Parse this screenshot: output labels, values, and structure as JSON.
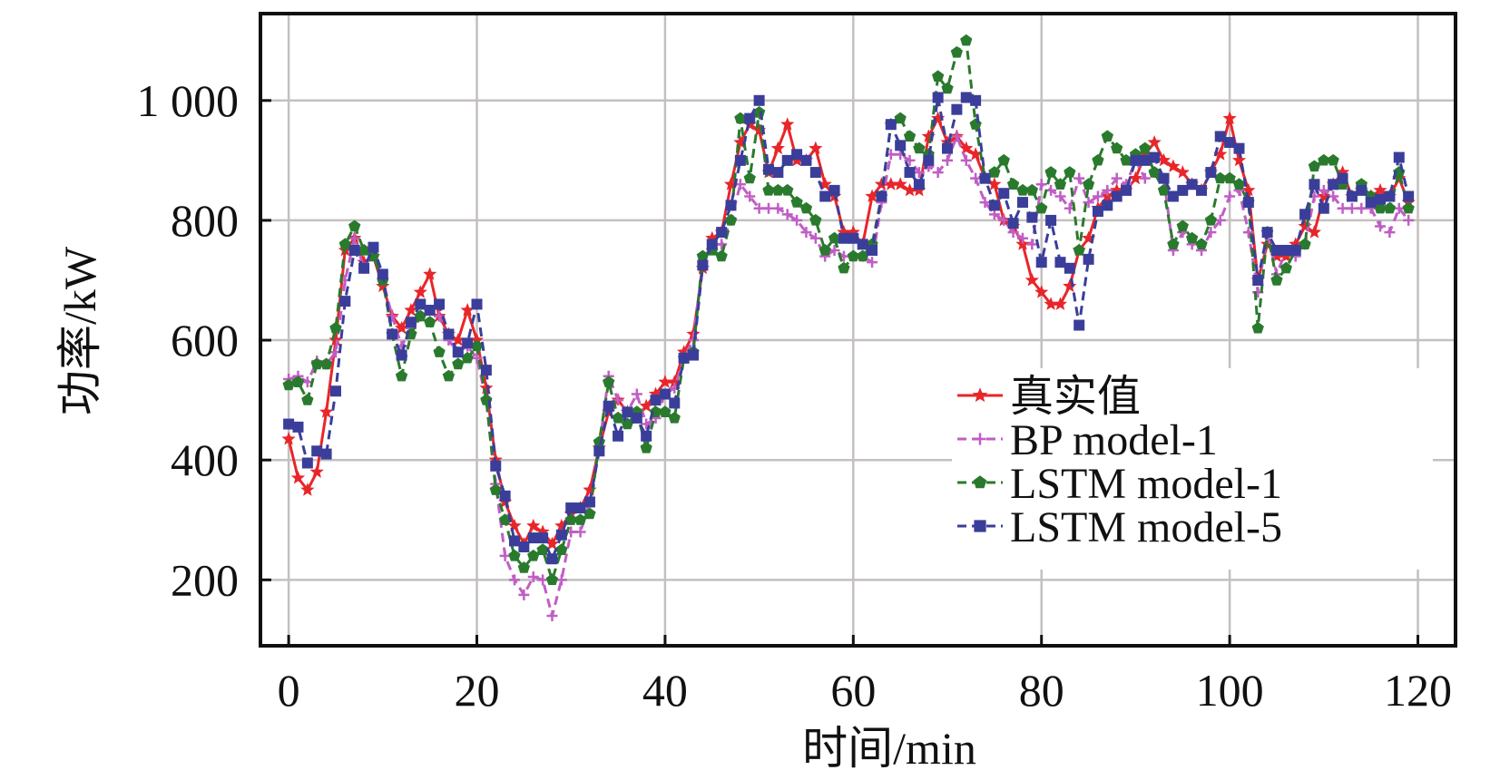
{
  "chart_data": {
    "type": "line",
    "xlabel": "时间/min",
    "ylabel": "功率/kW",
    "xlim": [
      -3,
      124
    ],
    "ylim": [
      90,
      1145
    ],
    "xticks": [
      0,
      20,
      40,
      60,
      80,
      100,
      120
    ],
    "xtick_labels": [
      "0",
      "20",
      "40",
      "60",
      "80",
      "100",
      "120"
    ],
    "yticks": [
      200,
      400,
      600,
      800,
      1000
    ],
    "ytick_labels": [
      "200",
      "400",
      "600",
      "800",
      "1 000"
    ],
    "grid": true,
    "legend_position": "lower-right",
    "x": [
      0,
      1,
      2,
      3,
      4,
      5,
      6,
      7,
      8,
      9,
      10,
      11,
      12,
      13,
      14,
      15,
      16,
      17,
      18,
      19,
      20,
      21,
      22,
      23,
      24,
      25,
      26,
      27,
      28,
      29,
      30,
      31,
      32,
      33,
      34,
      35,
      36,
      37,
      38,
      39,
      40,
      41,
      42,
      43,
      44,
      45,
      46,
      47,
      48,
      49,
      50,
      51,
      52,
      53,
      54,
      55,
      56,
      57,
      58,
      59,
      60,
      61,
      62,
      63,
      64,
      65,
      66,
      67,
      68,
      69,
      70,
      71,
      72,
      73,
      74,
      75,
      76,
      77,
      78,
      79,
      80,
      81,
      82,
      83,
      84,
      85,
      86,
      87,
      88,
      89,
      90,
      91,
      92,
      93,
      94,
      95,
      96,
      97,
      98,
      99,
      100,
      101,
      102,
      103,
      104,
      105,
      106,
      107,
      108,
      109,
      110,
      111,
      112,
      113,
      114,
      115,
      116,
      117,
      118,
      119
    ],
    "series": [
      {
        "name": "真实值",
        "color": "#e8262a",
        "marker": "star",
        "dash": "solid",
        "values": [
          435,
          370,
          350,
          380,
          480,
          600,
          750,
          770,
          730,
          740,
          690,
          640,
          620,
          650,
          680,
          710,
          640,
          610,
          600,
          650,
          600,
          520,
          400,
          330,
          290,
          260,
          290,
          280,
          260,
          290,
          310,
          320,
          350,
          420,
          480,
          500,
          480,
          470,
          490,
          510,
          530,
          530,
          580,
          610,
          720,
          770,
          780,
          860,
          930,
          960,
          950,
          880,
          920,
          960,
          900,
          900,
          920,
          860,
          840,
          780,
          780,
          760,
          840,
          860,
          860,
          860,
          850,
          850,
          940,
          970,
          930,
          940,
          920,
          910,
          870,
          860,
          800,
          790,
          760,
          700,
          680,
          660,
          660,
          690,
          750,
          770,
          820,
          840,
          850,
          850,
          870,
          910,
          930,
          900,
          890,
          880,
          860,
          850,
          880,
          910,
          970,
          900,
          850,
          700,
          760,
          740,
          740,
          760,
          790,
          780,
          840,
          860,
          880,
          840,
          850,
          840,
          850,
          840,
          870,
          830
        ]
      },
      {
        "name": "BP model-1",
        "color": "#c05ec5",
        "marker": "plus",
        "dash": "dashed",
        "values": [
          535,
          540,
          530,
          565,
          560,
          580,
          700,
          770,
          720,
          750,
          700,
          640,
          590,
          620,
          640,
          650,
          640,
          600,
          580,
          590,
          570,
          500,
          360,
          240,
          200,
          175,
          205,
          200,
          140,
          200,
          280,
          280,
          330,
          420,
          540,
          500,
          480,
          510,
          460,
          470,
          510,
          520,
          570,
          600,
          730,
          760,
          760,
          800,
          860,
          840,
          820,
          820,
          820,
          810,
          800,
          780,
          770,
          740,
          750,
          740,
          740,
          740,
          730,
          830,
          910,
          910,
          900,
          880,
          890,
          880,
          900,
          940,
          900,
          870,
          830,
          810,
          800,
          780,
          770,
          760,
          860,
          850,
          840,
          820,
          870,
          830,
          840,
          850,
          870,
          860,
          900,
          870,
          880,
          870,
          750,
          780,
          760,
          750,
          780,
          800,
          840,
          850,
          780,
          680,
          780,
          710,
          750,
          740,
          760,
          840,
          850,
          840,
          820,
          820,
          820,
          820,
          790,
          780,
          820,
          800
        ]
      },
      {
        "name": "LSTM model-1",
        "color": "#2a7a2e",
        "marker": "pentagon",
        "dash": "dashed",
        "values": [
          525,
          530,
          500,
          560,
          560,
          620,
          760,
          790,
          750,
          740,
          700,
          610,
          540,
          610,
          640,
          630,
          580,
          540,
          560,
          570,
          590,
          500,
          350,
          300,
          240,
          220,
          240,
          250,
          200,
          250,
          300,
          300,
          310,
          430,
          530,
          470,
          460,
          480,
          420,
          480,
          480,
          470,
          570,
          580,
          740,
          750,
          740,
          800,
          970,
          870,
          980,
          850,
          850,
          850,
          830,
          820,
          800,
          750,
          770,
          720,
          740,
          740,
          760,
          840,
          960,
          970,
          940,
          920,
          910,
          1040,
          1020,
          1080,
          1100,
          960,
          870,
          880,
          900,
          860,
          850,
          850,
          820,
          880,
          860,
          880,
          750,
          860,
          900,
          940,
          920,
          900,
          910,
          920,
          880,
          850,
          760,
          790,
          770,
          760,
          800,
          870,
          870,
          860,
          830,
          620,
          780,
          700,
          720,
          750,
          760,
          890,
          900,
          900,
          860,
          840,
          860,
          840,
          820,
          820,
          880,
          820
        ]
      },
      {
        "name": "LSTM model-5",
        "color": "#3a3e9a",
        "marker": "square",
        "dash": "dashed",
        "values": [
          460,
          455,
          395,
          415,
          410,
          515,
          665,
          750,
          720,
          755,
          710,
          610,
          575,
          630,
          660,
          650,
          660,
          610,
          580,
          595,
          660,
          550,
          390,
          340,
          265,
          255,
          270,
          270,
          235,
          275,
          320,
          320,
          330,
          415,
          490,
          440,
          480,
          470,
          440,
          500,
          510,
          495,
          570,
          575,
          725,
          760,
          780,
          825,
          900,
          970,
          1000,
          885,
          880,
          900,
          910,
          900,
          880,
          840,
          850,
          770,
          770,
          760,
          750,
          840,
          960,
          925,
          880,
          860,
          900,
          1005,
          920,
          985,
          1005,
          1000,
          870,
          825,
          845,
          795,
          830,
          805,
          730,
          800,
          730,
          720,
          625,
          735,
          815,
          825,
          840,
          850,
          900,
          900,
          905,
          870,
          840,
          850,
          860,
          850,
          880,
          940,
          930,
          920,
          830,
          700,
          780,
          750,
          750,
          750,
          810,
          860,
          820,
          860,
          870,
          840,
          850,
          830,
          835,
          840,
          905,
          840
        ]
      }
    ]
  }
}
